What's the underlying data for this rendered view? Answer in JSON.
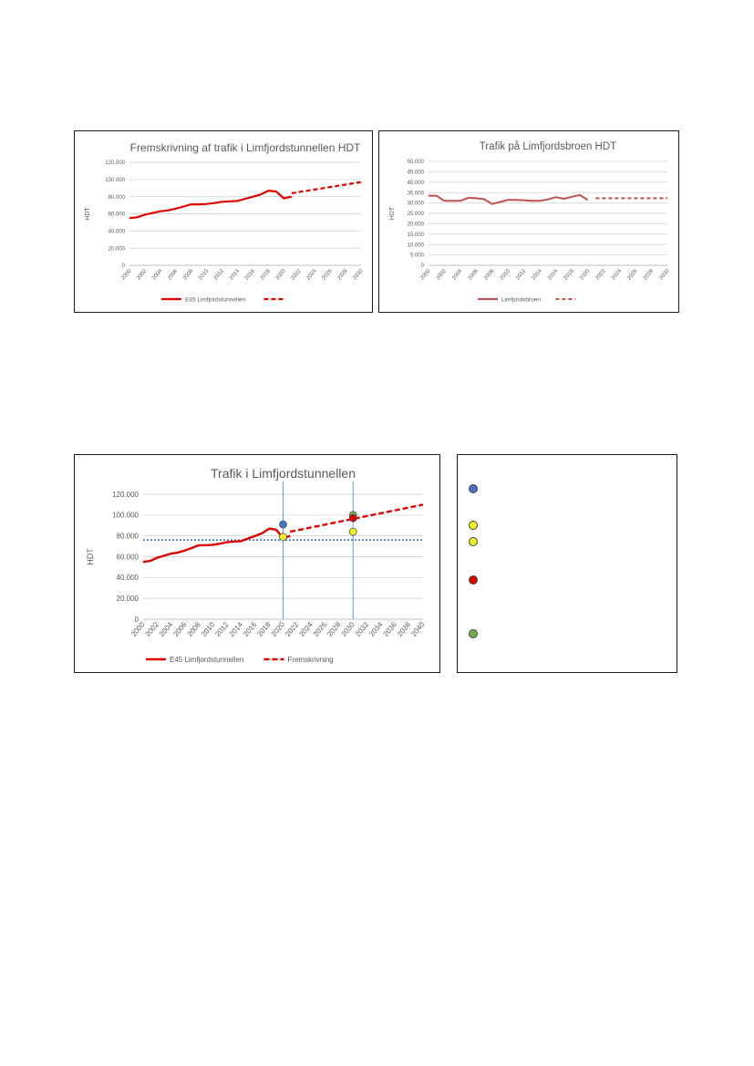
{
  "chart_data": [
    {
      "type": "line",
      "title": "Fremskrivning af trafik i Limfjordstunnellen HDT",
      "ylabel": "HDT",
      "ylim": [
        0,
        120000
      ],
      "yticks": [
        0,
        20000,
        40000,
        60000,
        80000,
        100000,
        120000
      ],
      "ytick_labels": [
        "0",
        "20.000",
        "40.000",
        "60.000",
        "80.000",
        "100.000",
        "120.000"
      ],
      "xlim": [
        2000,
        2030
      ],
      "xtick_labels": [
        "2000",
        "2002",
        "2004",
        "2006",
        "2008",
        "2010",
        "2012",
        "2014",
        "2016",
        "2018",
        "2020",
        "2022",
        "2024",
        "2026",
        "2028",
        "2030"
      ],
      "grid": true,
      "legend": "bottom",
      "series": [
        {
          "name": "E45 Limfjordstunnellen",
          "style": "solid",
          "color": "#e00000",
          "x": [
            2000,
            2001,
            2002,
            2003,
            2004,
            2005,
            2006,
            2007,
            2008,
            2009,
            2010,
            2011,
            2012,
            2013,
            2014,
            2015,
            2016,
            2017,
            2018,
            2019,
            2020,
            2021
          ],
          "y": [
            55000,
            56000,
            59000,
            61000,
            63000,
            64000,
            66000,
            68500,
            71000,
            71000,
            71500,
            72500,
            74000,
            74500,
            75000,
            77500,
            80000,
            82500,
            87000,
            86000,
            78000,
            80000
          ]
        },
        {
          "name": "",
          "style": "dashed",
          "color": "#e00000",
          "x": [
            2021,
            2030
          ],
          "y": [
            84000,
            97000
          ]
        }
      ]
    },
    {
      "type": "line",
      "title": "Trafik på Limfjordsbroen HDT",
      "ylabel": "HDT",
      "ylim": [
        0,
        50000
      ],
      "yticks": [
        0,
        5000,
        10000,
        15000,
        20000,
        25000,
        30000,
        35000,
        40000,
        45000,
        50000
      ],
      "ytick_labels": [
        "0",
        "5.000",
        "10.000",
        "15.000",
        "20.000",
        "25.000",
        "30.000",
        "35.000",
        "40.000",
        "45.000",
        "50.000"
      ],
      "xlim": [
        2000,
        2030
      ],
      "xtick_labels": [
        "2000",
        "2002",
        "2004",
        "2006",
        "2008",
        "2010",
        "2012",
        "2014",
        "2016",
        "2018",
        "2020",
        "2022",
        "2024",
        "2026",
        "2028",
        "2030"
      ],
      "grid": true,
      "legend": "bottom",
      "series": [
        {
          "name": "Limfjordsbroen",
          "style": "solid",
          "color": "#c0504d",
          "x": [
            2000,
            2001,
            2002,
            2003,
            2004,
            2005,
            2006,
            2007,
            2008,
            2009,
            2010,
            2011,
            2012,
            2013,
            2014,
            2015,
            2016,
            2017,
            2018,
            2019,
            2020
          ],
          "y": [
            33500,
            33500,
            31000,
            31000,
            31000,
            32500,
            32300,
            31800,
            29500,
            30500,
            31500,
            31500,
            31300,
            31000,
            31000,
            31700,
            32800,
            32000,
            33000,
            33800,
            31500
          ]
        },
        {
          "name": "",
          "style": "dashed",
          "color": "#c0504d",
          "x": [
            2021,
            2030
          ],
          "y": [
            32300,
            32300
          ]
        }
      ]
    },
    {
      "type": "line",
      "title": "Trafik i Limfjordstunnellen",
      "ylabel": "HDT",
      "ylim": [
        0,
        120000
      ],
      "yticks": [
        0,
        20000,
        40000,
        60000,
        80000,
        100000,
        120000
      ],
      "ytick_labels": [
        "0",
        "20.000",
        "40.000",
        "60.000",
        "80.000",
        "100.000",
        "120.000"
      ],
      "xlim": [
        2000,
        2040
      ],
      "xtick_labels": [
        "2000",
        "2002",
        "2004",
        "2006",
        "2008",
        "2010",
        "2012",
        "2014",
        "2016",
        "2018",
        "2020",
        "2022",
        "2024",
        "2026",
        "2028",
        "2030",
        "2032",
        "2034",
        "2036",
        "2038",
        "2040"
      ],
      "grid": true,
      "legend": "bottom",
      "vlines": [
        2020,
        2030
      ],
      "hline": 76000,
      "series": [
        {
          "name": "E45 Limfjordstunnellen",
          "style": "solid",
          "color": "#e00000",
          "x": [
            2000,
            2001,
            2002,
            2003,
            2004,
            2005,
            2006,
            2007,
            2008,
            2009,
            2010,
            2011,
            2012,
            2013,
            2014,
            2015,
            2016,
            2017,
            2018,
            2019,
            2020,
            2021
          ],
          "y": [
            55000,
            56000,
            59000,
            61000,
            63000,
            64000,
            66000,
            68500,
            71000,
            71000,
            71500,
            72500,
            74000,
            74500,
            75000,
            77500,
            80000,
            82500,
            87000,
            86000,
            78000,
            80000
          ]
        },
        {
          "name": "Fremskrivning",
          "style": "dashed",
          "color": "#e00000",
          "x": [
            2021,
            2040
          ],
          "y": [
            84000,
            110000
          ]
        }
      ],
      "points": [
        {
          "x": 2020,
          "y": 91000,
          "color": "#4472c4"
        },
        {
          "x": 2020,
          "y": 79000,
          "color": "#f2f21e"
        },
        {
          "x": 2030,
          "y": 100000,
          "color": "#70ad47"
        },
        {
          "x": 2030,
          "y": 97000,
          "color": "#e00000"
        },
        {
          "x": 2030,
          "y": 84000,
          "color": "#f2f21e"
        }
      ]
    }
  ],
  "marker_legend": [
    {
      "color": "#4472c4"
    },
    {
      "color": "#f2f21e"
    },
    {
      "color": "#f2f21e"
    },
    {
      "color": "#e00000"
    },
    {
      "color": "#70ad47"
    }
  ]
}
